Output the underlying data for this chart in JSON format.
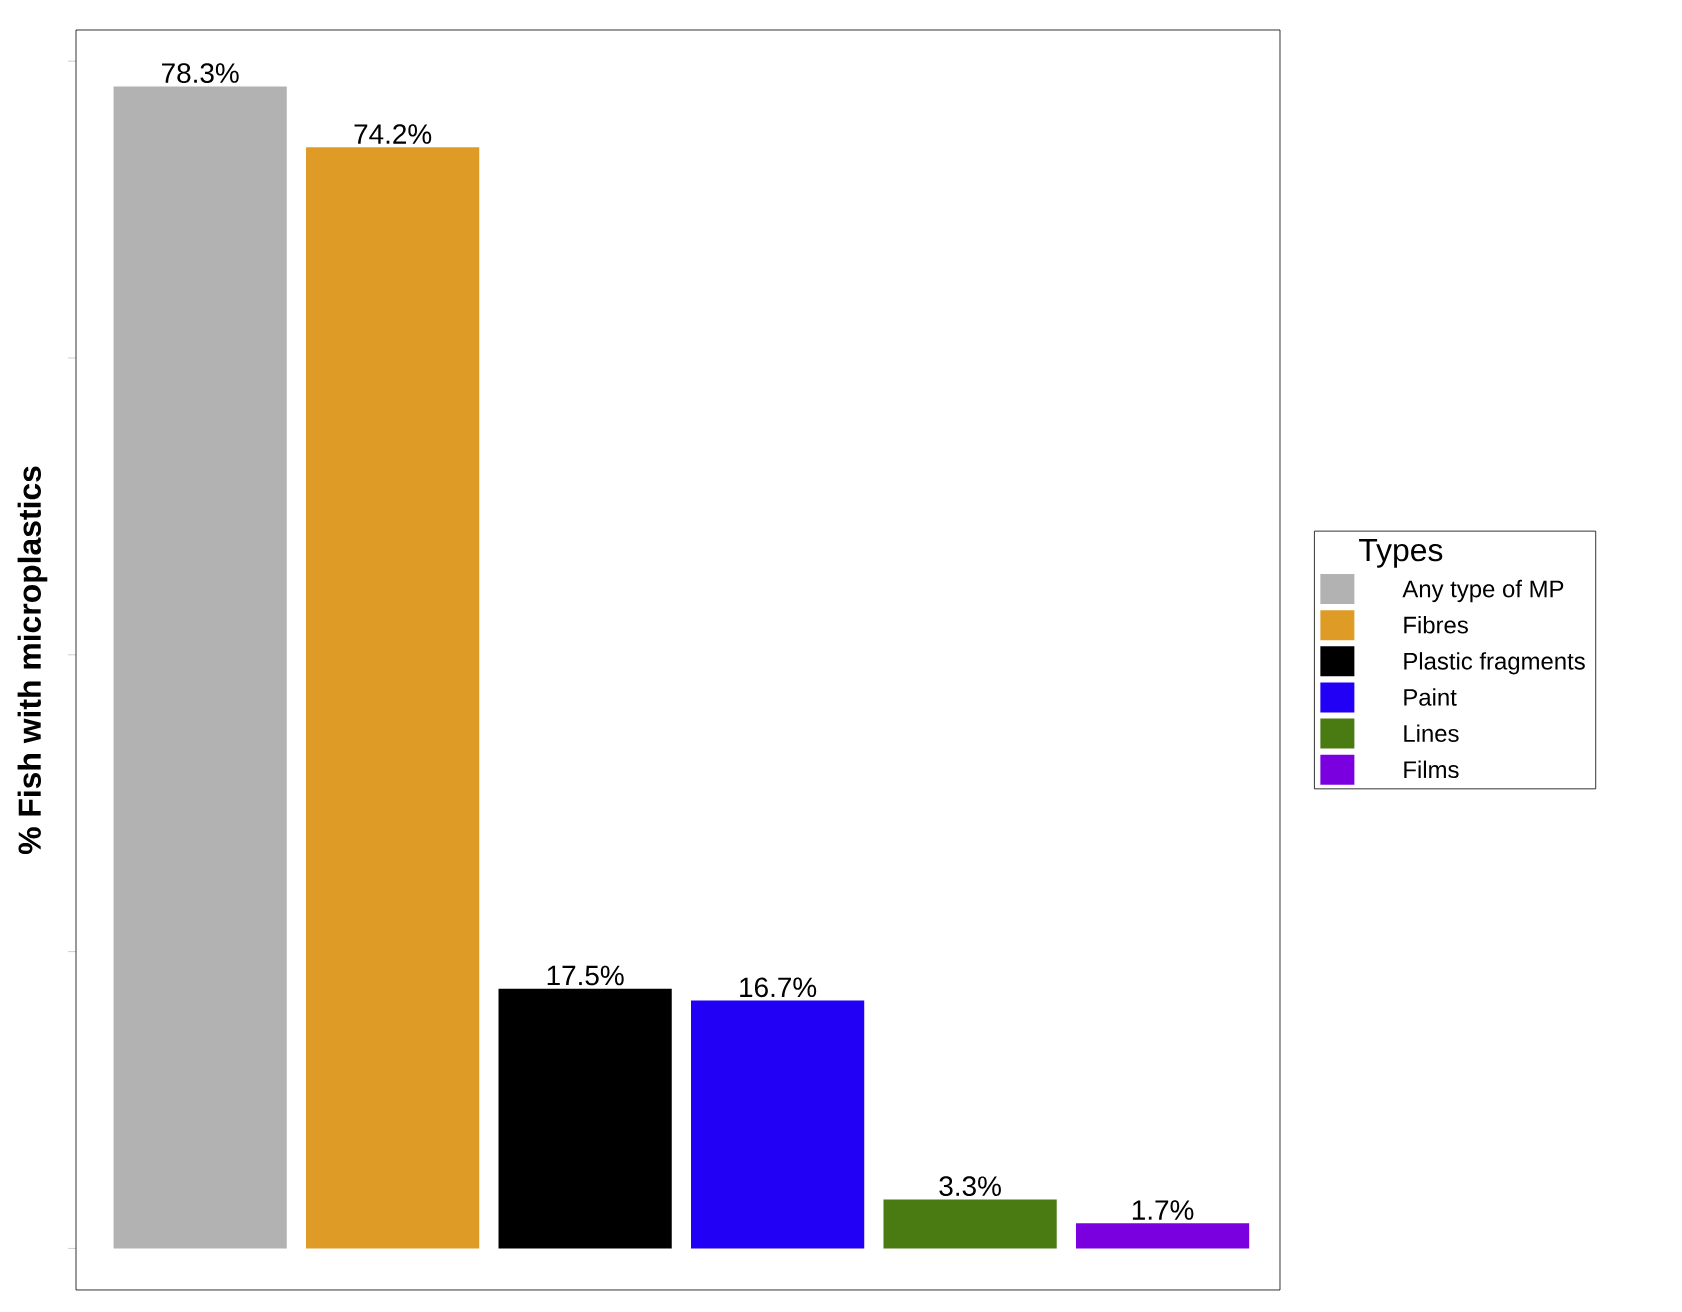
{
  "chart_data": {
    "type": "bar",
    "ylabel": "% Fish with microplastics",
    "legend_title": "Types",
    "categories": [
      null,
      null,
      null,
      null,
      null,
      null
    ],
    "series": [
      {
        "name": "Any type of MP",
        "color": "#b2b2b2",
        "values": [
          78.3,
          null,
          null,
          null,
          null,
          null
        ],
        "value_labels": [
          "78.3%",
          null,
          null,
          null,
          null,
          null
        ]
      },
      {
        "name": "Fibres",
        "color": "#de9b26",
        "values": [
          null,
          74.2,
          null,
          null,
          null,
          null
        ],
        "value_labels": [
          null,
          "74.2%",
          null,
          null,
          null,
          null
        ]
      },
      {
        "name": "Plastic fragments",
        "color": "#000000",
        "values": [
          null,
          null,
          17.5,
          null,
          null,
          null
        ],
        "value_labels": [
          null,
          null,
          "17.5%",
          null,
          null,
          null
        ]
      },
      {
        "name": "Paint",
        "color": "#2200f5",
        "values": [
          null,
          null,
          null,
          16.7,
          null,
          null
        ],
        "value_labels": [
          null,
          null,
          null,
          "16.7%",
          null,
          null
        ]
      },
      {
        "name": "Lines",
        "color": "#4a7a12",
        "values": [
          null,
          null,
          null,
          null,
          3.3,
          null
        ],
        "value_labels": [
          null,
          null,
          null,
          null,
          "3.3%",
          null
        ]
      },
      {
        "name": "Films",
        "color": "#7b00e0",
        "values": [
          null,
          null,
          null,
          null,
          null,
          1.7
        ],
        "value_labels": [
          null,
          null,
          null,
          null,
          null,
          "1.7%"
        ]
      }
    ],
    "ylim": [
      -2.8,
      82.1
    ],
    "yticks": [
      {
        "value": 0,
        "label": null
      },
      {
        "value": 20,
        "label": null
      },
      {
        "value": 40,
        "label": null
      },
      {
        "value": 60,
        "label": null
      },
      {
        "value": 80,
        "label": null
      }
    ],
    "legend": "right",
    "stacked": true,
    "grid": false
  }
}
